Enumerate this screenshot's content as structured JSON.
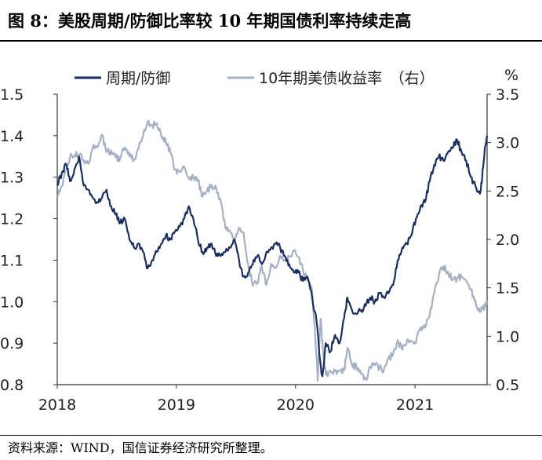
{
  "title": "图 8：美股周期/防御比率较 10 年期国债利率持续走高",
  "source": "资料来源：WIND，国信证券经济研究所整理。",
  "chart_data": {
    "type": "line",
    "x_ticks": [
      "2018",
      "2019",
      "2020",
      "2021"
    ],
    "x_range": [
      "2018-01-01",
      "2021-08-10"
    ],
    "y_left": {
      "range": [
        0.8,
        1.5
      ],
      "ticks": [
        "1.5",
        "1.4",
        "1.3",
        "1.2",
        "1.1",
        "1.0",
        "0.9",
        "0.8"
      ]
    },
    "y_right": {
      "range": [
        0.5,
        3.5
      ],
      "ticks": [
        "3.5",
        "3.0",
        "2.5",
        "2.0",
        "1.5",
        "1.0",
        "0.5"
      ],
      "unit": "%"
    },
    "legend_position": "top",
    "grid": false,
    "series": [
      {
        "name": "周期/防御",
        "axis": "left",
        "color": "#1b2f5e",
        "points": [
          [
            "2018-01-01",
            1.28
          ],
          [
            "2018-01-15",
            1.31
          ],
          [
            "2018-01-29",
            1.33
          ],
          [
            "2018-02-09",
            1.29
          ],
          [
            "2018-02-23",
            1.32
          ],
          [
            "2018-03-09",
            1.35
          ],
          [
            "2018-03-23",
            1.28
          ],
          [
            "2018-04-06",
            1.27
          ],
          [
            "2018-04-20",
            1.25
          ],
          [
            "2018-05-04",
            1.24
          ],
          [
            "2018-05-18",
            1.25
          ],
          [
            "2018-06-01",
            1.27
          ],
          [
            "2018-06-15",
            1.23
          ],
          [
            "2018-06-29",
            1.21
          ],
          [
            "2018-07-13",
            1.19
          ],
          [
            "2018-07-27",
            1.2
          ],
          [
            "2018-08-10",
            1.15
          ],
          [
            "2018-08-24",
            1.13
          ],
          [
            "2018-09-07",
            1.14
          ],
          [
            "2018-09-21",
            1.12
          ],
          [
            "2018-10-05",
            1.08
          ],
          [
            "2018-10-19",
            1.1
          ],
          [
            "2018-11-02",
            1.12
          ],
          [
            "2018-11-16",
            1.14
          ],
          [
            "2018-11-30",
            1.16
          ],
          [
            "2018-12-14",
            1.15
          ],
          [
            "2018-12-28",
            1.17
          ],
          [
            "2019-01-11",
            1.18
          ],
          [
            "2019-01-25",
            1.2
          ],
          [
            "2019-02-08",
            1.23
          ],
          [
            "2019-02-22",
            1.2
          ],
          [
            "2019-03-08",
            1.15
          ],
          [
            "2019-03-22",
            1.12
          ],
          [
            "2019-04-05",
            1.13
          ],
          [
            "2019-04-19",
            1.14
          ],
          [
            "2019-05-03",
            1.11
          ],
          [
            "2019-05-17",
            1.11
          ],
          [
            "2019-05-31",
            1.12
          ],
          [
            "2019-06-14",
            1.13
          ],
          [
            "2019-06-28",
            1.15
          ],
          [
            "2019-07-12",
            1.1
          ],
          [
            "2019-07-26",
            1.06
          ],
          [
            "2019-08-09",
            1.07
          ],
          [
            "2019-08-23",
            1.09
          ],
          [
            "2019-09-06",
            1.11
          ],
          [
            "2019-09-20",
            1.09
          ],
          [
            "2019-10-04",
            1.12
          ],
          [
            "2019-10-18",
            1.13
          ],
          [
            "2019-11-01",
            1.14
          ],
          [
            "2019-11-15",
            1.13
          ],
          [
            "2019-11-29",
            1.11
          ],
          [
            "2019-12-13",
            1.09
          ],
          [
            "2019-12-27",
            1.07
          ],
          [
            "2020-01-10",
            1.07
          ],
          [
            "2020-01-24",
            1.05
          ],
          [
            "2020-02-07",
            1.06
          ],
          [
            "2020-02-21",
            1.01
          ],
          [
            "2020-03-06",
            0.95
          ],
          [
            "2020-03-16",
            0.86
          ],
          [
            "2020-03-23",
            0.82
          ],
          [
            "2020-04-03",
            0.9
          ],
          [
            "2020-04-17",
            0.88
          ],
          [
            "2020-05-01",
            0.92
          ],
          [
            "2020-05-15",
            0.9
          ],
          [
            "2020-05-29",
            0.96
          ],
          [
            "2020-06-08",
            1.01
          ],
          [
            "2020-06-22",
            0.98
          ],
          [
            "2020-07-06",
            0.97
          ],
          [
            "2020-07-20",
            0.98
          ],
          [
            "2020-08-03",
            0.99
          ],
          [
            "2020-08-17",
            1.01
          ],
          [
            "2020-08-31",
            1.0
          ],
          [
            "2020-09-14",
            1.02
          ],
          [
            "2020-09-28",
            1.01
          ],
          [
            "2020-10-12",
            1.02
          ],
          [
            "2020-10-26",
            1.04
          ],
          [
            "2020-11-09",
            1.1
          ],
          [
            "2020-11-23",
            1.13
          ],
          [
            "2020-12-07",
            1.14
          ],
          [
            "2020-12-21",
            1.16
          ],
          [
            "2021-01-04",
            1.2
          ],
          [
            "2021-01-18",
            1.23
          ],
          [
            "2021-02-01",
            1.24
          ],
          [
            "2021-02-15",
            1.29
          ],
          [
            "2021-03-01",
            1.33
          ],
          [
            "2021-03-15",
            1.35
          ],
          [
            "2021-03-29",
            1.34
          ],
          [
            "2021-04-12",
            1.36
          ],
          [
            "2021-04-26",
            1.37
          ],
          [
            "2021-05-10",
            1.39
          ],
          [
            "2021-05-24",
            1.36
          ],
          [
            "2021-06-07",
            1.34
          ],
          [
            "2021-06-21",
            1.3
          ],
          [
            "2021-07-05",
            1.28
          ],
          [
            "2021-07-19",
            1.26
          ],
          [
            "2021-07-26",
            1.3
          ],
          [
            "2021-08-02",
            1.36
          ],
          [
            "2021-08-10",
            1.4
          ]
        ]
      },
      {
        "name": "10年期美债收益率　（右）",
        "axis": "right",
        "color": "#a5b1c2",
        "points": [
          [
            "2018-01-01",
            2.45
          ],
          [
            "2018-01-15",
            2.55
          ],
          [
            "2018-01-29",
            2.72
          ],
          [
            "2018-02-09",
            2.85
          ],
          [
            "2018-02-23",
            2.87
          ],
          [
            "2018-03-09",
            2.88
          ],
          [
            "2018-03-23",
            2.82
          ],
          [
            "2018-04-06",
            2.78
          ],
          [
            "2018-04-20",
            2.95
          ],
          [
            "2018-05-04",
            2.95
          ],
          [
            "2018-05-18",
            3.08
          ],
          [
            "2018-06-01",
            2.9
          ],
          [
            "2018-06-15",
            2.92
          ],
          [
            "2018-06-29",
            2.85
          ],
          [
            "2018-07-13",
            2.84
          ],
          [
            "2018-07-27",
            2.95
          ],
          [
            "2018-08-10",
            2.86
          ],
          [
            "2018-08-24",
            2.82
          ],
          [
            "2018-09-07",
            2.94
          ],
          [
            "2018-09-21",
            3.07
          ],
          [
            "2018-10-05",
            3.22
          ],
          [
            "2018-10-19",
            3.18
          ],
          [
            "2018-11-02",
            3.2
          ],
          [
            "2018-11-16",
            3.06
          ],
          [
            "2018-11-30",
            3.0
          ],
          [
            "2018-12-14",
            2.89
          ],
          [
            "2018-12-28",
            2.72
          ],
          [
            "2019-01-11",
            2.7
          ],
          [
            "2019-01-25",
            2.75
          ],
          [
            "2019-02-08",
            2.63
          ],
          [
            "2019-02-22",
            2.65
          ],
          [
            "2019-03-08",
            2.62
          ],
          [
            "2019-03-22",
            2.44
          ],
          [
            "2019-04-05",
            2.5
          ],
          [
            "2019-04-19",
            2.56
          ],
          [
            "2019-05-03",
            2.53
          ],
          [
            "2019-05-17",
            2.39
          ],
          [
            "2019-05-31",
            2.12
          ],
          [
            "2019-06-14",
            2.09
          ],
          [
            "2019-06-28",
            2.0
          ],
          [
            "2019-07-12",
            2.12
          ],
          [
            "2019-07-26",
            2.07
          ],
          [
            "2019-08-09",
            1.74
          ],
          [
            "2019-08-23",
            1.52
          ],
          [
            "2019-09-06",
            1.55
          ],
          [
            "2019-09-20",
            1.72
          ],
          [
            "2019-10-04",
            1.53
          ],
          [
            "2019-10-18",
            1.75
          ],
          [
            "2019-11-01",
            1.71
          ],
          [
            "2019-11-15",
            1.83
          ],
          [
            "2019-11-29",
            1.78
          ],
          [
            "2019-12-13",
            1.82
          ],
          [
            "2019-12-27",
            1.88
          ],
          [
            "2020-01-10",
            1.82
          ],
          [
            "2020-01-24",
            1.68
          ],
          [
            "2020-02-07",
            1.58
          ],
          [
            "2020-02-21",
            1.47
          ],
          [
            "2020-03-06",
            0.76
          ],
          [
            "2020-03-09",
            0.54
          ],
          [
            "2020-03-18",
            1.18
          ],
          [
            "2020-03-25",
            0.85
          ],
          [
            "2020-04-03",
            0.6
          ],
          [
            "2020-04-17",
            0.64
          ],
          [
            "2020-05-01",
            0.64
          ],
          [
            "2020-05-15",
            0.64
          ],
          [
            "2020-05-29",
            0.65
          ],
          [
            "2020-06-08",
            0.88
          ],
          [
            "2020-06-22",
            0.71
          ],
          [
            "2020-07-06",
            0.68
          ],
          [
            "2020-07-20",
            0.61
          ],
          [
            "2020-08-03",
            0.56
          ],
          [
            "2020-08-17",
            0.68
          ],
          [
            "2020-08-31",
            0.7
          ],
          [
            "2020-09-14",
            0.67
          ],
          [
            "2020-09-28",
            0.66
          ],
          [
            "2020-10-12",
            0.77
          ],
          [
            "2020-10-26",
            0.82
          ],
          [
            "2020-11-09",
            0.96
          ],
          [
            "2020-11-23",
            0.86
          ],
          [
            "2020-12-07",
            0.94
          ],
          [
            "2020-12-21",
            0.95
          ],
          [
            "2021-01-04",
            0.93
          ],
          [
            "2021-01-18",
            1.09
          ],
          [
            "2021-02-01",
            1.09
          ],
          [
            "2021-02-15",
            1.21
          ],
          [
            "2021-03-01",
            1.45
          ],
          [
            "2021-03-15",
            1.62
          ],
          [
            "2021-03-29",
            1.72
          ],
          [
            "2021-04-12",
            1.67
          ],
          [
            "2021-04-26",
            1.58
          ],
          [
            "2021-05-10",
            1.6
          ],
          [
            "2021-05-24",
            1.61
          ],
          [
            "2021-06-07",
            1.57
          ],
          [
            "2021-06-21",
            1.48
          ],
          [
            "2021-07-05",
            1.37
          ],
          [
            "2021-07-19",
            1.25
          ],
          [
            "2021-07-26",
            1.3
          ],
          [
            "2021-08-02",
            1.3
          ],
          [
            "2021-08-10",
            1.36
          ]
        ]
      }
    ]
  }
}
